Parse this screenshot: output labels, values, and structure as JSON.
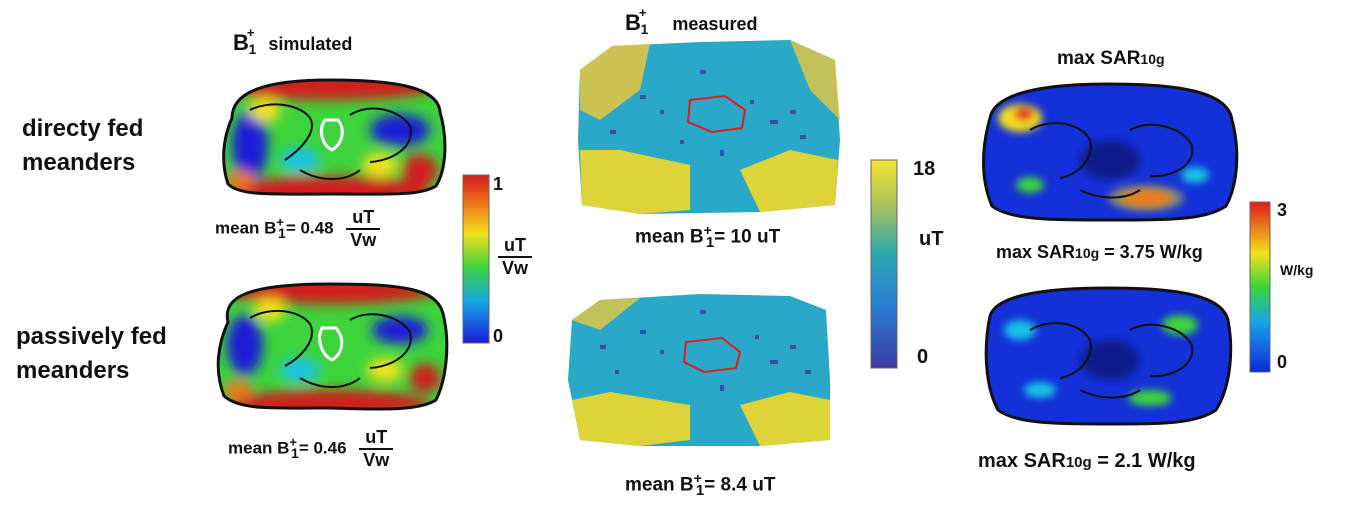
{
  "titles": {
    "simulated": {
      "b": "B",
      "plus": "+",
      "one": "1",
      "text": "simulated"
    },
    "measured": {
      "b": "B",
      "plus": "+",
      "one": "1",
      "text": "measured"
    },
    "sar": {
      "prefix": "max SAR",
      "sub": "10g"
    }
  },
  "rows": {
    "row1": [
      "directy fed",
      "meanders"
    ],
    "row2": [
      "passively fed",
      "meanders"
    ]
  },
  "annotations": {
    "sim1": {
      "pre": "mean B",
      "plus": "+",
      "one": "1",
      "eq": "= 0.48",
      "num": "uT",
      "den": "Vw"
    },
    "sim2": {
      "pre": "mean B",
      "plus": "+",
      "one": "1",
      "eq": "=  0.46",
      "num": "uT",
      "den": "Vw"
    },
    "meas1": {
      "pre": "mean B",
      "plus": "+",
      "one": "1",
      "eq": "= 10 uT"
    },
    "meas2": {
      "pre": "mean B",
      "plus": "+",
      "one": "1",
      "eq": "= 8.4 uT"
    },
    "sar1": {
      "pre": "max SAR",
      "sub": "10g",
      "eq": " = 3.75 W/kg"
    },
    "sar2": {
      "pre": "max SAR",
      "sub": "10g",
      "eq": " = 2.1 W/kg"
    }
  },
  "colorbars": {
    "sim": {
      "max": "1",
      "min": "0",
      "num": "uT",
      "den": "Vw"
    },
    "meas": {
      "max": "18",
      "min": "0",
      "unit": "uT"
    },
    "sar": {
      "max": "3",
      "min": "0",
      "unit": "W/kg"
    }
  },
  "colors": {
    "jet_blue": "#1a1ad6",
    "jet_cyan": "#17c3e6",
    "jet_green": "#3cd33c",
    "jet_yellow": "#f2e21a",
    "jet_red": "#d21b1b",
    "parula_dark": "#3b3ba0",
    "parula_mid": "#2aa8c8",
    "parula_yellow": "#f7e634",
    "roi_red": "#e21a1a",
    "outline": "#111111"
  }
}
